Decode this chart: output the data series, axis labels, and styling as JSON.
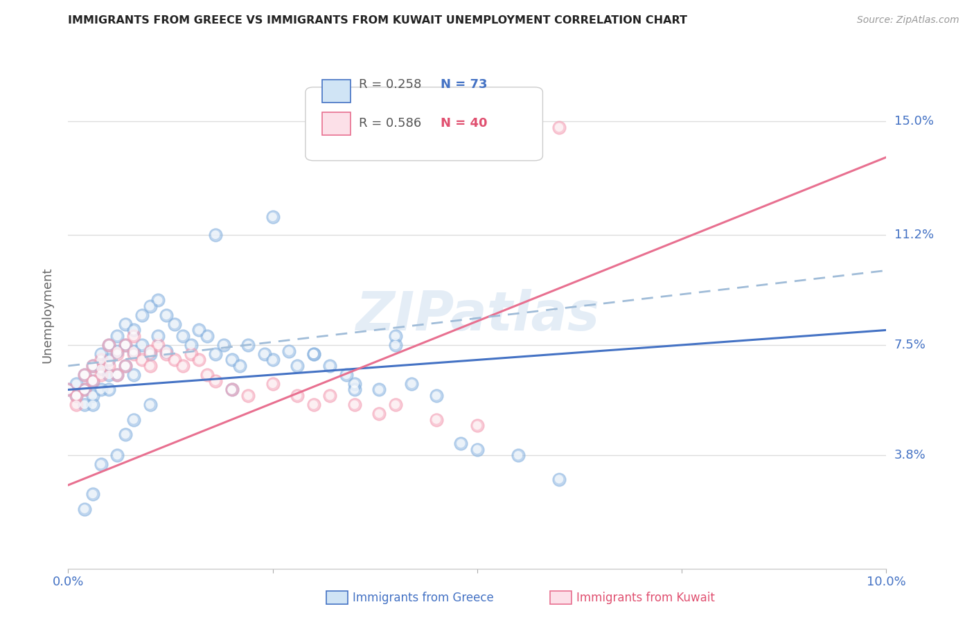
{
  "title": "IMMIGRANTS FROM GREECE VS IMMIGRANTS FROM KUWAIT UNEMPLOYMENT CORRELATION CHART",
  "source": "Source: ZipAtlas.com",
  "ylabel": "Unemployment",
  "ytick_labels": [
    "3.8%",
    "7.5%",
    "11.2%",
    "15.0%"
  ],
  "ytick_values": [
    0.038,
    0.075,
    0.112,
    0.15
  ],
  "xmin": 0.0,
  "xmax": 0.1,
  "ymin": 0.0,
  "ymax": 0.17,
  "legend_r1": "R = 0.258",
  "legend_n1": "N = 73",
  "legend_r2": "R = 0.586",
  "legend_n2": "N = 40",
  "color_blue": "#8ab4e0",
  "color_pink": "#f4a0b5",
  "color_blue_line": "#4472c4",
  "color_pink_line": "#e87090",
  "color_blue_text": "#4472c4",
  "color_pink_text": "#e05070",
  "color_dash": "#a0bcd8",
  "watermark": "ZIPatlas",
  "greece_scatter_x": [
    0.0,
    0.001,
    0.001,
    0.002,
    0.002,
    0.002,
    0.003,
    0.003,
    0.003,
    0.003,
    0.004,
    0.004,
    0.004,
    0.005,
    0.005,
    0.005,
    0.005,
    0.006,
    0.006,
    0.006,
    0.007,
    0.007,
    0.007,
    0.008,
    0.008,
    0.008,
    0.009,
    0.009,
    0.01,
    0.01,
    0.011,
    0.011,
    0.012,
    0.012,
    0.013,
    0.014,
    0.015,
    0.016,
    0.017,
    0.018,
    0.019,
    0.02,
    0.021,
    0.022,
    0.024,
    0.025,
    0.027,
    0.028,
    0.03,
    0.032,
    0.034,
    0.035,
    0.038,
    0.04,
    0.042,
    0.045,
    0.048,
    0.05,
    0.055,
    0.06,
    0.025,
    0.018,
    0.03,
    0.035,
    0.04,
    0.02,
    0.01,
    0.008,
    0.006,
    0.003,
    0.002,
    0.004,
    0.007
  ],
  "greece_scatter_y": [
    0.06,
    0.062,
    0.058,
    0.065,
    0.06,
    0.055,
    0.068,
    0.063,
    0.058,
    0.055,
    0.072,
    0.067,
    0.06,
    0.075,
    0.07,
    0.065,
    0.06,
    0.078,
    0.073,
    0.065,
    0.082,
    0.075,
    0.068,
    0.08,
    0.073,
    0.065,
    0.085,
    0.075,
    0.088,
    0.072,
    0.09,
    0.078,
    0.085,
    0.073,
    0.082,
    0.078,
    0.075,
    0.08,
    0.078,
    0.072,
    0.075,
    0.07,
    0.068,
    0.075,
    0.072,
    0.07,
    0.073,
    0.068,
    0.072,
    0.068,
    0.065,
    0.062,
    0.06,
    0.075,
    0.062,
    0.058,
    0.042,
    0.04,
    0.038,
    0.03,
    0.118,
    0.112,
    0.072,
    0.06,
    0.078,
    0.06,
    0.055,
    0.05,
    0.038,
    0.025,
    0.02,
    0.035,
    0.045
  ],
  "kuwait_scatter_x": [
    0.0,
    0.001,
    0.001,
    0.002,
    0.002,
    0.003,
    0.003,
    0.004,
    0.004,
    0.005,
    0.005,
    0.006,
    0.006,
    0.007,
    0.007,
    0.008,
    0.008,
    0.009,
    0.01,
    0.01,
    0.011,
    0.012,
    0.013,
    0.014,
    0.015,
    0.016,
    0.017,
    0.018,
    0.02,
    0.022,
    0.025,
    0.028,
    0.03,
    0.032,
    0.035,
    0.038,
    0.04,
    0.045,
    0.05,
    0.06
  ],
  "kuwait_scatter_y": [
    0.06,
    0.058,
    0.055,
    0.065,
    0.06,
    0.068,
    0.063,
    0.07,
    0.065,
    0.075,
    0.068,
    0.072,
    0.065,
    0.075,
    0.068,
    0.078,
    0.072,
    0.07,
    0.073,
    0.068,
    0.075,
    0.072,
    0.07,
    0.068,
    0.072,
    0.07,
    0.065,
    0.063,
    0.06,
    0.058,
    0.062,
    0.058,
    0.055,
    0.058,
    0.055,
    0.052,
    0.055,
    0.05,
    0.048,
    0.148
  ],
  "greece_line_x": [
    0.0,
    0.1
  ],
  "greece_line_y": [
    0.06,
    0.08
  ],
  "kuwait_line_x": [
    0.0,
    0.1
  ],
  "kuwait_line_y": [
    0.028,
    0.138
  ],
  "dash_line_x": [
    0.0,
    0.1
  ],
  "dash_line_y": [
    0.068,
    0.1
  ]
}
